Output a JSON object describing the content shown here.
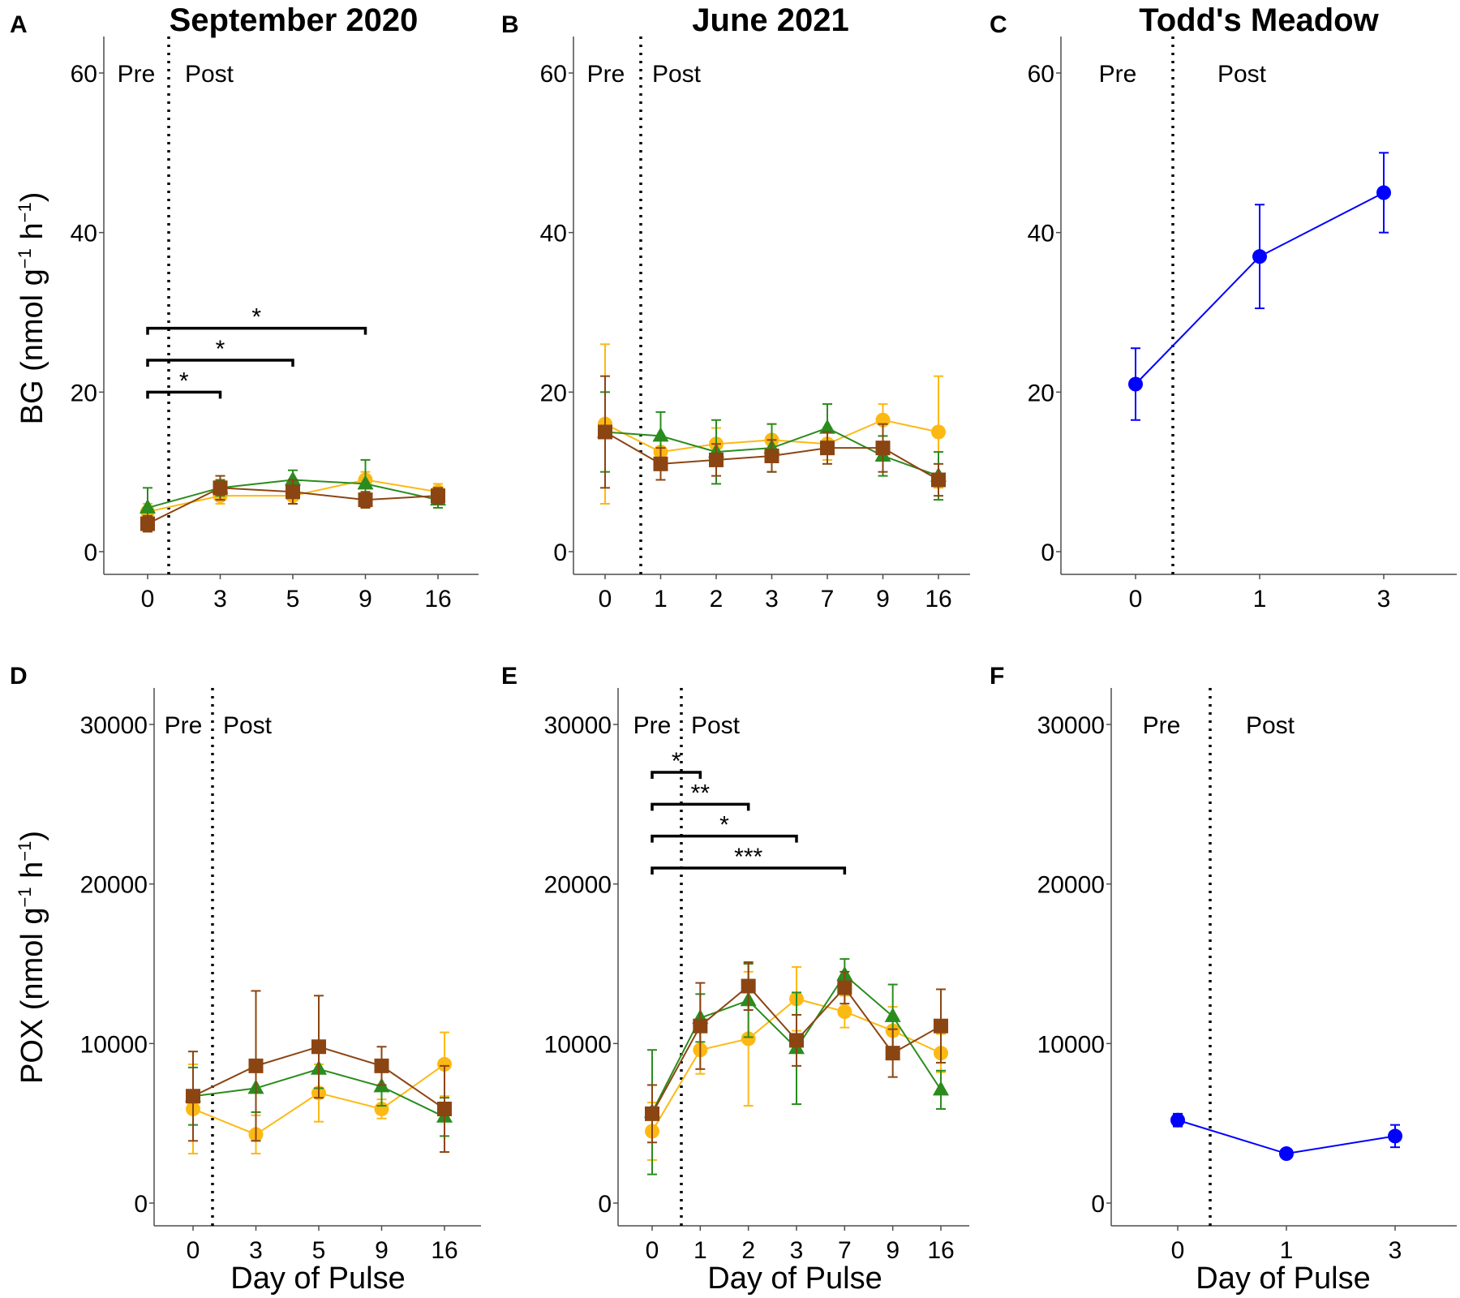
{
  "colors": {
    "orange": "#FDB913",
    "green": "#2A8C1E",
    "brown": "#8B4513",
    "blue": "#0000FF"
  },
  "axes": {
    "xlabel": "Day of Pulse",
    "ylabel_bg_main": "BG (nmol g",
    "ylabel_pox_main": "POX (nmol g",
    "ylabel_sup1": "−1",
    "ylabel_mid": " h",
    "ylabel_sup2": "−1",
    "ylabel_close": ")"
  },
  "period_labels": {
    "pre": "Pre",
    "post": "Post"
  },
  "panels": [
    {
      "letter": "A",
      "title": "September 2020"
    },
    {
      "letter": "B",
      "title": "June 2021"
    },
    {
      "letter": "C",
      "title": "Todd's Meadow"
    },
    {
      "letter": "D",
      "title": ""
    },
    {
      "letter": "E",
      "title": ""
    },
    {
      "letter": "F",
      "title": ""
    }
  ],
  "chart_data": [
    {
      "panel": "A",
      "type": "line",
      "measure": "BG",
      "categories": [
        "0",
        "3",
        "5",
        "9",
        "16"
      ],
      "ylim": [
        0,
        60
      ],
      "yticks": [
        0,
        20,
        40,
        60
      ],
      "pulse_after_index": 0,
      "series": [
        {
          "color": "orange",
          "marker": "circle",
          "values": [
            5.0,
            7.0,
            7.0,
            9.0,
            7.5
          ],
          "errors": [
            1.0,
            1.0,
            1.0,
            1.0,
            1.0
          ]
        },
        {
          "color": "green",
          "marker": "triangle",
          "values": [
            5.5,
            8.0,
            9.0,
            8.5,
            6.5
          ],
          "errors": [
            2.5,
            1.0,
            1.2,
            3.0,
            1.0
          ]
        },
        {
          "color": "brown",
          "marker": "square",
          "values": [
            3.5,
            8.0,
            7.5,
            6.5,
            7.0
          ],
          "errors": [
            1.0,
            1.5,
            1.5,
            1.0,
            1.0
          ]
        }
      ],
      "significance": [
        {
          "from": "0",
          "to": "3",
          "y": 20,
          "label": "*"
        },
        {
          "from": "0",
          "to": "5",
          "y": 24,
          "label": "*"
        },
        {
          "from": "0",
          "to": "9",
          "y": 28,
          "label": "*"
        }
      ]
    },
    {
      "panel": "B",
      "type": "line",
      "measure": "BG",
      "categories": [
        "0",
        "1",
        "2",
        "3",
        "7",
        "9",
        "16"
      ],
      "ylim": [
        0,
        60
      ],
      "yticks": [
        0,
        20,
        40,
        60
      ],
      "pulse_after_index": 0,
      "series": [
        {
          "color": "orange",
          "marker": "circle",
          "values": [
            16.0,
            12.5,
            13.5,
            14.0,
            13.5,
            16.5,
            15.0
          ],
          "errors": [
            10.0,
            2.0,
            2.0,
            2.0,
            2.0,
            2.0,
            7.0
          ]
        },
        {
          "color": "green",
          "marker": "triangle",
          "values": [
            15.0,
            14.5,
            12.5,
            13.0,
            15.5,
            12.0,
            9.5
          ],
          "errors": [
            5.0,
            3.0,
            4.0,
            3.0,
            3.0,
            2.5,
            3.0
          ]
        },
        {
          "color": "brown",
          "marker": "square",
          "values": [
            15.0,
            11.0,
            11.5,
            12.0,
            13.0,
            13.0,
            9.0
          ],
          "errors": [
            7.0,
            2.0,
            2.0,
            2.0,
            2.0,
            3.0,
            2.0
          ]
        }
      ],
      "significance": []
    },
    {
      "panel": "C",
      "type": "line",
      "measure": "BG",
      "categories": [
        "0",
        "1",
        "3"
      ],
      "ylim": [
        0,
        60
      ],
      "yticks": [
        0,
        20,
        40,
        60
      ],
      "pulse_after_index": 0,
      "series": [
        {
          "color": "blue",
          "marker": "circle",
          "values": [
            21.0,
            37.0,
            45.0
          ],
          "errors": [
            4.5,
            6.5,
            5.0
          ]
        }
      ],
      "significance": []
    },
    {
      "panel": "D",
      "type": "line",
      "measure": "POX",
      "categories": [
        "0",
        "3",
        "5",
        "9",
        "16"
      ],
      "ylim": [
        0,
        30000
      ],
      "yticks": [
        0,
        10000,
        20000,
        30000
      ],
      "pulse_after_index": 0,
      "series": [
        {
          "color": "orange",
          "marker": "circle",
          "values": [
            5900,
            4300,
            6900,
            5900,
            8700
          ],
          "errors": [
            2800,
            1200,
            1800,
            600,
            2000
          ]
        },
        {
          "color": "green",
          "marker": "triangle",
          "values": [
            6700,
            7200,
            8400,
            7300,
            5400
          ],
          "errors": [
            1800,
            1500,
            1200,
            1200,
            1200
          ]
        },
        {
          "color": "brown",
          "marker": "square",
          "values": [
            6700,
            8600,
            9800,
            8600,
            5900
          ],
          "errors": [
            2800,
            4700,
            3200,
            1200,
            2700
          ]
        }
      ],
      "significance": []
    },
    {
      "panel": "E",
      "type": "line",
      "measure": "POX",
      "categories": [
        "0",
        "1",
        "2",
        "3",
        "7",
        "9",
        "16"
      ],
      "ylim": [
        0,
        30000
      ],
      "yticks": [
        0,
        10000,
        20000,
        30000
      ],
      "pulse_after_index": 0,
      "series": [
        {
          "color": "orange",
          "marker": "circle",
          "values": [
            4500,
            9600,
            10300,
            12800,
            12000,
            10800,
            9400
          ],
          "errors": [
            1800,
            1500,
            4200,
            2000,
            1000,
            1500,
            1200
          ]
        },
        {
          "color": "green",
          "marker": "triangle",
          "values": [
            5700,
            11600,
            12700,
            9700,
            14300,
            11700,
            7100
          ],
          "errors": [
            3900,
            1500,
            2300,
            3500,
            1000,
            2000,
            1200
          ]
        },
        {
          "color": "brown",
          "marker": "square",
          "values": [
            5600,
            11100,
            13600,
            10200,
            13500,
            9400,
            11100
          ],
          "errors": [
            1800,
            2700,
            1500,
            1600,
            1000,
            1500,
            2300
          ]
        }
      ],
      "significance": [
        {
          "from": "0",
          "to": "1",
          "y": 27000,
          "label": "*"
        },
        {
          "from": "0",
          "to": "2",
          "y": 25000,
          "label": "**"
        },
        {
          "from": "0",
          "to": "3",
          "y": 23000,
          "label": "*"
        },
        {
          "from": "0",
          "to": "7",
          "y": 21000,
          "label": "***"
        }
      ]
    },
    {
      "panel": "F",
      "type": "line",
      "measure": "POX",
      "categories": [
        "0",
        "1",
        "3"
      ],
      "ylim": [
        0,
        30000
      ],
      "yticks": [
        0,
        10000,
        20000,
        30000
      ],
      "pulse_after_index": 0,
      "series": [
        {
          "color": "blue",
          "marker": "circle",
          "values": [
            5200,
            3100,
            4200
          ],
          "errors": [
            400,
            250,
            700
          ]
        }
      ],
      "significance": []
    }
  ]
}
